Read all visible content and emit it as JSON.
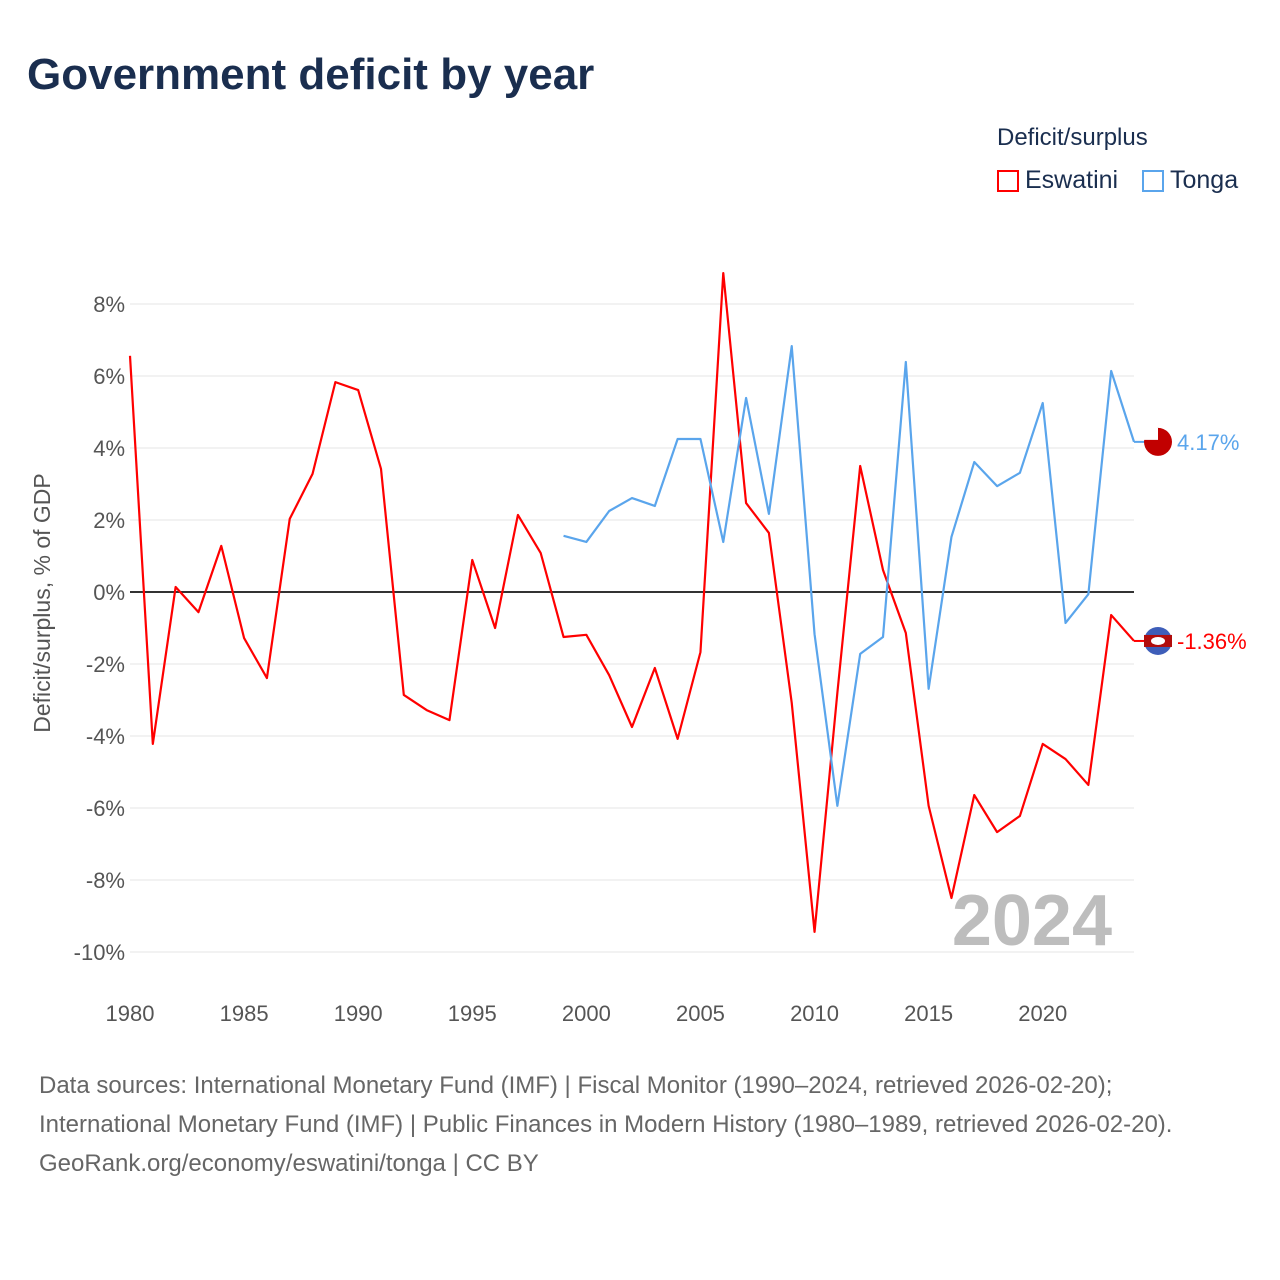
{
  "title": "Government deficit by year",
  "legend": {
    "title": "Deficit/surplus",
    "items": [
      {
        "name": "Eswatini",
        "color": "#ff0000"
      },
      {
        "name": "Tonga",
        "color": "#5aa5ec"
      }
    ]
  },
  "footer": {
    "line1": "Data sources: International Monetary Fund (IMF) | Fiscal Monitor (1990–2024, retrieved 2026-02-20); International Monetary Fund (IMF) | Public Finances in Modern History (1980–1989, retrieved 2026-02-20).",
    "line2": "GeoRank.org/economy/eswatini/tonga | CC BY"
  },
  "chart_data": {
    "type": "line",
    "title": "Government deficit by year",
    "ylabel": "Deficit/surplus, % of GDP",
    "xlabel": "",
    "xlim": [
      1980,
      2024
    ],
    "ylim": [
      -10,
      8
    ],
    "yticks": [
      8,
      6,
      4,
      2,
      0,
      -2,
      -4,
      -6,
      -8,
      -10
    ],
    "ytick_labels": [
      "8%",
      "6%",
      "4%",
      "2%",
      "0%",
      "-2%",
      "-4%",
      "-6%",
      "-8%",
      "-10%"
    ],
    "xticks": [
      1980,
      1985,
      1990,
      1995,
      2000,
      2005,
      2010,
      2015,
      2020
    ],
    "xtick_labels": [
      "1980",
      "1985",
      "1990",
      "1995",
      "2000",
      "2005",
      "2010",
      "2015",
      "2020"
    ],
    "year_label": "2024",
    "grid": true,
    "legend_position": "top-right",
    "series": [
      {
        "name": "Eswatini",
        "color": "#ff0000",
        "end_label": "-1.36%",
        "start": 1980,
        "values": [
          6.56,
          -4.22,
          0.14,
          -0.56,
          1.28,
          -1.28,
          -2.39,
          2.03,
          3.28,
          5.83,
          5.61,
          3.42,
          -2.86,
          -3.28,
          -3.56,
          0.89,
          -1.0,
          2.14,
          1.08,
          -1.25,
          -1.19,
          -2.31,
          -3.75,
          -2.11,
          -4.08,
          -1.67,
          8.86,
          2.47,
          1.64,
          -3.08,
          -9.44,
          -2.8,
          3.5,
          0.61,
          -1.14,
          -5.94,
          -8.5,
          -5.64,
          -6.67,
          -6.22,
          -4.22,
          -4.64,
          -5.36,
          -0.64,
          -1.36
        ]
      },
      {
        "name": "Tonga",
        "color": "#5aa5ec",
        "end_label": "4.17%",
        "start": 1999,
        "values": [
          1.56,
          1.39,
          2.25,
          2.61,
          2.39,
          4.25,
          4.25,
          1.39,
          5.39,
          2.17,
          6.83,
          -1.17,
          -5.94,
          -1.72,
          -1.25,
          6.39,
          -2.69,
          1.53,
          3.61,
          2.94,
          3.31,
          5.25,
          -0.86,
          -0.06,
          6.14,
          4.17
        ]
      }
    ]
  }
}
